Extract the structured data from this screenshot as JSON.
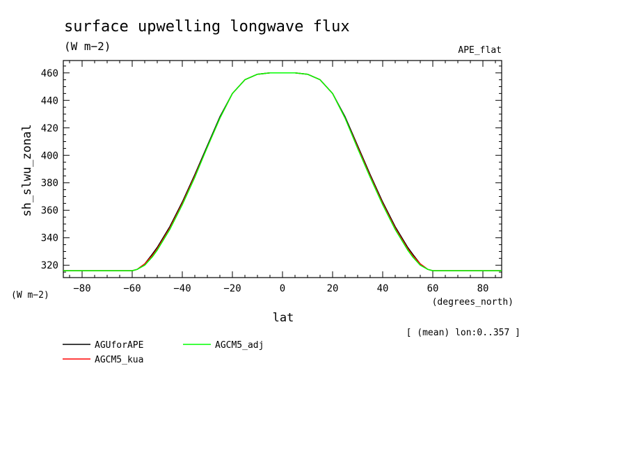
{
  "chart_data": {
    "type": "line",
    "title": "surface upwelling longwave flux",
    "units": "(W m−2)",
    "experiment": "APE_flat",
    "xlabel": "lat",
    "x_units": "(degrees_north)",
    "ylabel": "sh_slwu_zonal",
    "y_units": "(W m−2)",
    "note": "[ (mean) lon:0..357 ]",
    "xlim": [
      -87.5,
      87.5
    ],
    "ylim": [
      311,
      469
    ],
    "x_ticks": [
      -80,
      -60,
      -40,
      -20,
      0,
      20,
      40,
      60,
      80
    ],
    "x_tick_labels": [
      "−80",
      "−60",
      "−40",
      "−20",
      "0",
      "20",
      "40",
      "60",
      "80"
    ],
    "y_ticks": [
      320,
      340,
      360,
      380,
      400,
      420,
      440,
      460
    ],
    "y_tick_labels": [
      "320",
      "340",
      "360",
      "380",
      "400",
      "420",
      "440",
      "460"
    ],
    "x": [
      -87.5,
      -80,
      -70,
      -60,
      -58,
      -55,
      -52,
      -50,
      -45,
      -40,
      -35,
      -30,
      -25,
      -20,
      -15,
      -10,
      -5,
      0,
      5,
      10,
      15,
      20,
      25,
      30,
      35,
      40,
      45,
      50,
      52,
      55,
      58,
      60,
      70,
      80,
      87.5
    ],
    "series": [
      {
        "name": "AGUforAPE",
        "color": "#000000",
        "values": [
          316,
          316,
          316,
          316,
          317,
          321,
          328,
          333,
          348,
          366,
          386,
          407,
          428,
          445,
          455,
          459,
          460,
          460,
          460,
          459,
          455,
          445,
          428,
          407,
          386,
          366,
          348,
          333,
          328,
          321,
          317,
          316,
          316,
          316,
          316
        ]
      },
      {
        "name": "AGCM5_kua",
        "color": "#ff0000",
        "values": [
          316,
          316,
          316,
          316,
          317,
          321,
          327,
          332,
          347,
          365,
          385,
          406,
          427,
          445,
          455,
          459,
          460,
          460,
          460,
          459,
          455,
          445,
          427,
          406,
          385,
          365,
          347,
          332,
          327,
          321,
          317,
          316,
          316,
          316,
          316
        ]
      },
      {
        "name": "AGCM5_adj",
        "color": "#00ff00",
        "values": [
          316,
          316,
          316,
          316,
          317,
          320,
          326,
          331,
          346,
          364,
          384,
          406,
          427,
          445,
          455,
          459,
          460,
          460,
          460,
          459,
          455,
          445,
          427,
          405,
          384,
          364,
          346,
          331,
          326,
          320,
          317,
          316,
          316,
          316,
          316
        ]
      }
    ],
    "legend": [
      {
        "label": "AGUforAPE",
        "color": "#000000"
      },
      {
        "label": "AGCM5_kua",
        "color": "#ff0000"
      },
      {
        "label": "AGCM5_adj",
        "color": "#00ff00"
      }
    ]
  }
}
